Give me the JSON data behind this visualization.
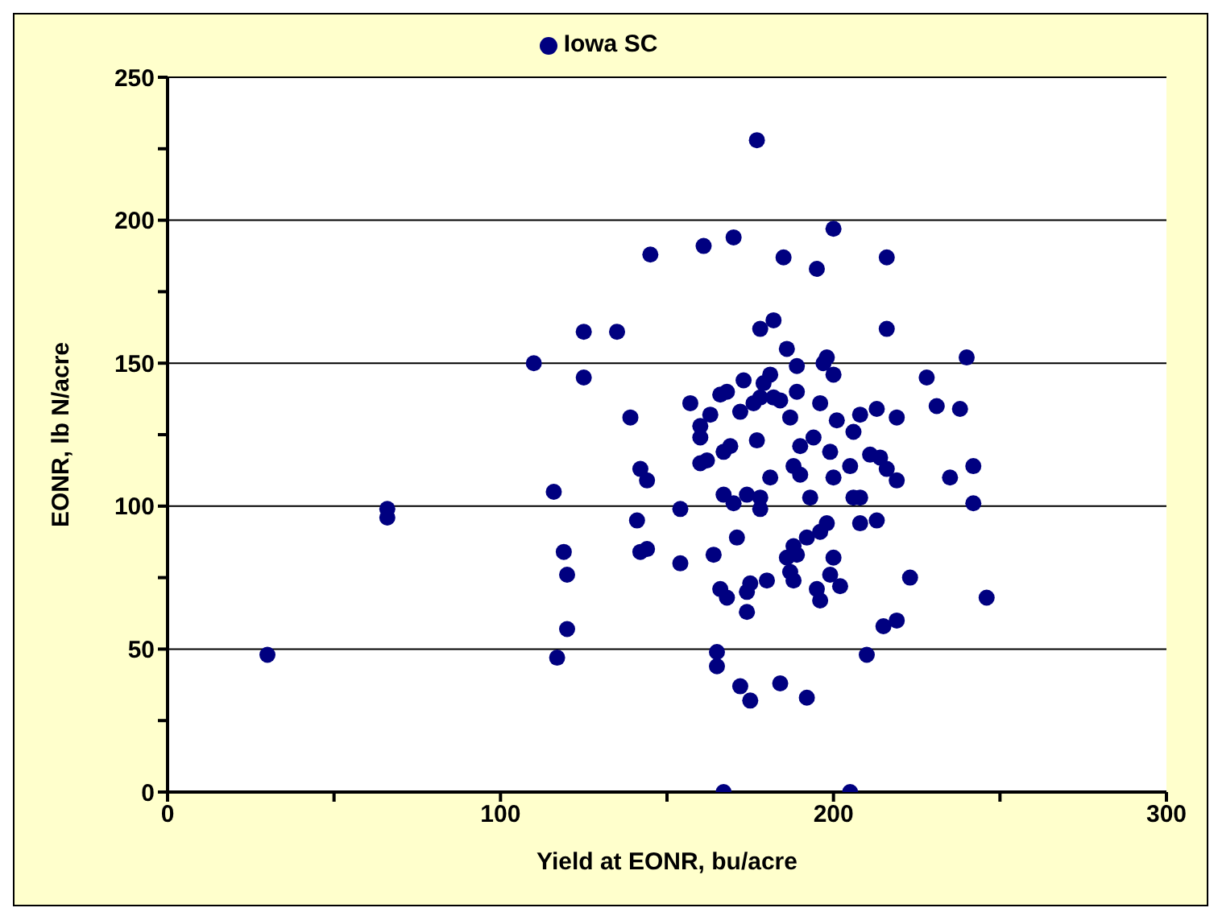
{
  "chart_data": {
    "type": "scatter",
    "xlabel": "Yield at EONR, bu/acre",
    "ylabel": "EONR, lb N/acre",
    "legend": "top",
    "grid": "y",
    "marker": "circle",
    "xlim": [
      0,
      300
    ],
    "xticks": [
      0,
      {
        "value": 50,
        "label": null
      },
      100,
      {
        "value": 150,
        "label": null
      },
      200,
      {
        "value": 250,
        "label": null
      },
      300
    ],
    "ylim": [
      0,
      250
    ],
    "yticks": [
      0,
      {
        "value": 25,
        "label": null
      },
      50,
      {
        "value": 75,
        "label": null
      },
      100,
      {
        "value": 125,
        "label": null
      },
      150,
      {
        "value": 175,
        "label": null
      },
      200,
      {
        "value": 225,
        "label": null
      },
      250
    ],
    "series": [
      {
        "name": "Iowa SC",
        "color": "#000080",
        "x": [
          30,
          66,
          66,
          110,
          125,
          135,
          125,
          145,
          139,
          157,
          116,
          119,
          120,
          120,
          117,
          142,
          144,
          141,
          142,
          144,
          154,
          154,
          177,
          161,
          170,
          185,
          195,
          200,
          216,
          178,
          182,
          216,
          186,
          189,
          198,
          197,
          200,
          240,
          228,
          231,
          238,
          163,
          160,
          160,
          166,
          168,
          173,
          181,
          179,
          176,
          178,
          182,
          184,
          189,
          172,
          187,
          196,
          201,
          208,
          213,
          219,
          206,
          177,
          194,
          190,
          199,
          169,
          167,
          160,
          162,
          188,
          190,
          205,
          211,
          214,
          216,
          219,
          200,
          181,
          235,
          242,
          242,
          167,
          170,
          174,
          178,
          178,
          193,
          206,
          208,
          171,
          164,
          198,
          196,
          192,
          188,
          186,
          189,
          187,
          188,
          200,
          199,
          202,
          180,
          175,
          174,
          166,
          168,
          174,
          195,
          196,
          208,
          213,
          223,
          246,
          215,
          219,
          210,
          165,
          165,
          172,
          175,
          184,
          192,
          167,
          205
        ],
        "values": [
          48,
          99,
          96,
          150,
          161,
          161,
          145,
          188,
          131,
          136,
          105,
          84,
          76,
          57,
          47,
          113,
          109,
          95,
          84,
          85,
          99,
          80,
          228,
          191,
          194,
          187,
          183,
          197,
          187,
          162,
          165,
          162,
          155,
          149,
          152,
          150,
          146,
          152,
          145,
          135,
          134,
          132,
          128,
          124,
          139,
          140,
          144,
          146,
          143,
          136,
          138,
          138,
          137,
          140,
          133,
          131,
          136,
          130,
          132,
          134,
          131,
          126,
          123,
          124,
          121,
          119,
          121,
          119,
          115,
          116,
          114,
          111,
          114,
          118,
          117,
          113,
          109,
          110,
          110,
          110,
          114,
          101,
          104,
          101,
          104,
          103,
          99,
          103,
          103,
          103,
          89,
          83,
          94,
          91,
          89,
          86,
          82,
          83,
          77,
          74,
          82,
          76,
          72,
          74,
          73,
          70,
          71,
          68,
          63,
          71,
          67,
          94,
          95,
          75,
          68,
          58,
          60,
          48,
          49,
          44,
          37,
          32,
          38,
          33,
          0,
          0
        ]
      }
    ]
  }
}
